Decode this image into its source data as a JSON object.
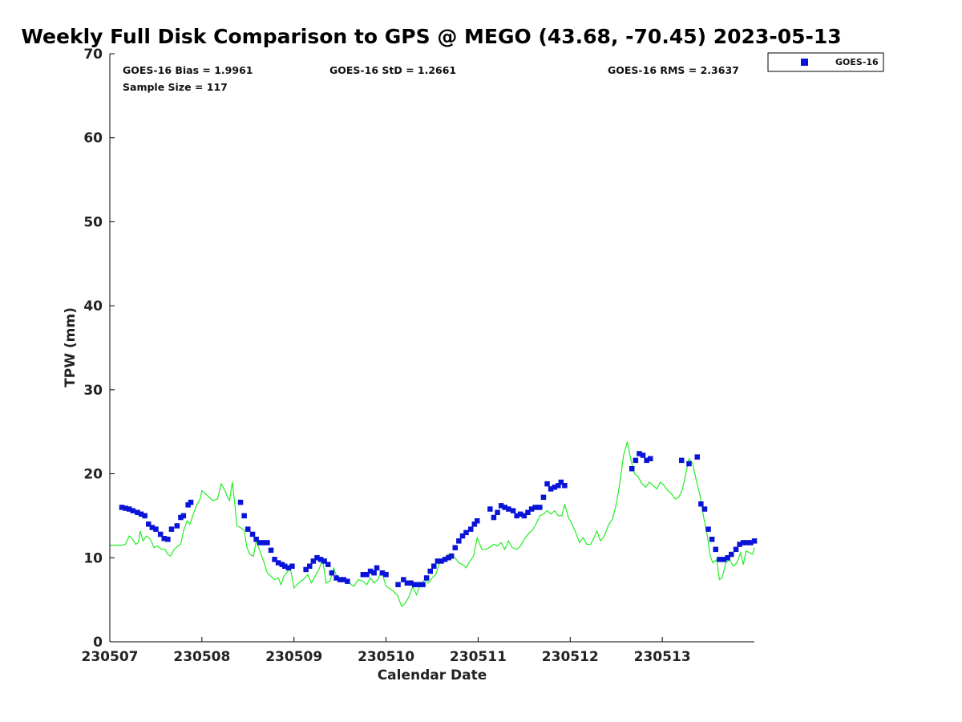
{
  "chart_data": {
    "type": "scatter",
    "title": "Weekly Full Disk Comparison to GPS @ MEGO (43.68, -70.45) 2023-05-13",
    "xlabel": "Calendar Date",
    "ylabel": "TPW (mm)",
    "xlim": [
      0,
      7
    ],
    "ylim": [
      0,
      70
    ],
    "x_ticks": [
      0,
      1,
      2,
      3,
      4,
      5,
      6
    ],
    "x_tick_labels": [
      "230507",
      "230508",
      "230509",
      "230510",
      "230511",
      "230512",
      "230513"
    ],
    "y_ticks": [
      0,
      10,
      20,
      30,
      40,
      50,
      60,
      70
    ],
    "y_tick_labels": [
      "0",
      "10",
      "20",
      "30",
      "40",
      "50",
      "60",
      "70"
    ],
    "grid": false,
    "legend_position": "top-right (outside plot)",
    "stats": {
      "bias": "GOES-16 Bias = 1.9961",
      "std": "GOES-16 StD = 1.2661",
      "rms": "GOES-16 RMS = 2.3637",
      "sample": "Sample Size = 117"
    },
    "series": [
      {
        "name": "GOES-16",
        "kind": "scatter",
        "color": "#0a14d8",
        "points": [
          [
            0.13,
            16.0
          ],
          [
            0.17,
            15.9
          ],
          [
            0.21,
            15.8
          ],
          [
            0.25,
            15.6
          ],
          [
            0.3,
            15.4
          ],
          [
            0.34,
            15.2
          ],
          [
            0.38,
            15.0
          ],
          [
            0.42,
            14.0
          ],
          [
            0.46,
            13.6
          ],
          [
            0.5,
            13.4
          ],
          [
            0.55,
            12.8
          ],
          [
            0.59,
            12.3
          ],
          [
            0.63,
            12.2
          ],
          [
            0.67,
            13.4
          ],
          [
            0.73,
            13.8
          ],
          [
            0.77,
            14.8
          ],
          [
            0.8,
            15.0
          ],
          [
            0.85,
            16.3
          ],
          [
            0.88,
            16.6
          ],
          [
            1.42,
            16.6
          ],
          [
            1.46,
            15.0
          ],
          [
            1.5,
            13.4
          ],
          [
            1.55,
            12.8
          ],
          [
            1.59,
            12.2
          ],
          [
            1.63,
            11.8
          ],
          [
            1.67,
            11.8
          ],
          [
            1.71,
            11.8
          ],
          [
            1.75,
            10.9
          ],
          [
            1.79,
            9.8
          ],
          [
            1.83,
            9.4
          ],
          [
            1.87,
            9.2
          ],
          [
            1.9,
            9.0
          ],
          [
            1.94,
            8.8
          ],
          [
            1.98,
            9.0
          ],
          [
            2.13,
            8.6
          ],
          [
            2.17,
            9.0
          ],
          [
            2.21,
            9.6
          ],
          [
            2.25,
            10.0
          ],
          [
            2.29,
            9.8
          ],
          [
            2.33,
            9.6
          ],
          [
            2.37,
            9.2
          ],
          [
            2.41,
            8.2
          ],
          [
            2.46,
            7.6
          ],
          [
            2.5,
            7.4
          ],
          [
            2.54,
            7.4
          ],
          [
            2.58,
            7.2
          ],
          [
            2.75,
            8.0
          ],
          [
            2.79,
            8.0
          ],
          [
            2.83,
            8.4
          ],
          [
            2.87,
            8.2
          ],
          [
            2.9,
            8.8
          ],
          [
            2.96,
            8.2
          ],
          [
            3.0,
            8.0
          ],
          [
            3.13,
            6.8
          ],
          [
            3.19,
            7.4
          ],
          [
            3.23,
            7.0
          ],
          [
            3.27,
            7.0
          ],
          [
            3.31,
            6.8
          ],
          [
            3.35,
            6.8
          ],
          [
            3.4,
            6.8
          ],
          [
            3.44,
            7.6
          ],
          [
            3.48,
            8.4
          ],
          [
            3.52,
            9.0
          ],
          [
            3.56,
            9.6
          ],
          [
            3.6,
            9.6
          ],
          [
            3.64,
            9.8
          ],
          [
            3.68,
            10.0
          ],
          [
            3.71,
            10.2
          ],
          [
            3.75,
            11.2
          ],
          [
            3.79,
            12.0
          ],
          [
            3.83,
            12.6
          ],
          [
            3.87,
            13.0
          ],
          [
            3.92,
            13.4
          ],
          [
            3.96,
            14.0
          ],
          [
            3.99,
            14.4
          ],
          [
            4.13,
            15.8
          ],
          [
            4.17,
            14.8
          ],
          [
            4.21,
            15.4
          ],
          [
            4.25,
            16.2
          ],
          [
            4.29,
            16.0
          ],
          [
            4.33,
            15.8
          ],
          [
            4.38,
            15.6
          ],
          [
            4.42,
            15.0
          ],
          [
            4.46,
            15.2
          ],
          [
            4.5,
            15.0
          ],
          [
            4.54,
            15.4
          ],
          [
            4.58,
            15.8
          ],
          [
            4.62,
            16.0
          ],
          [
            4.67,
            16.0
          ],
          [
            4.71,
            17.2
          ],
          [
            4.75,
            18.8
          ],
          [
            4.79,
            18.2
          ],
          [
            4.83,
            18.4
          ],
          [
            4.87,
            18.6
          ],
          [
            4.9,
            19.0
          ],
          [
            4.94,
            18.6
          ],
          [
            5.67,
            20.6
          ],
          [
            5.71,
            21.6
          ],
          [
            5.75,
            22.4
          ],
          [
            5.79,
            22.2
          ],
          [
            5.83,
            21.6
          ],
          [
            5.87,
            21.8
          ],
          [
            6.21,
            21.6
          ],
          [
            6.29,
            21.2
          ],
          [
            6.38,
            22.0
          ],
          [
            6.42,
            16.4
          ],
          [
            6.46,
            15.8
          ],
          [
            6.5,
            13.4
          ],
          [
            6.54,
            12.2
          ],
          [
            6.58,
            11.0
          ],
          [
            6.62,
            9.8
          ],
          [
            6.67,
            9.8
          ],
          [
            6.71,
            10.0
          ],
          [
            6.75,
            10.4
          ],
          [
            6.8,
            11.0
          ],
          [
            6.84,
            11.6
          ],
          [
            6.88,
            11.8
          ],
          [
            6.92,
            11.8
          ],
          [
            6.96,
            11.8
          ],
          [
            7.0,
            12.0
          ]
        ]
      },
      {
        "name": "GPS",
        "kind": "line",
        "color": "#22ee22",
        "points": [
          [
            0.0,
            11.5
          ],
          [
            0.13,
            11.5
          ],
          [
            0.17,
            11.6
          ],
          [
            0.21,
            12.6
          ],
          [
            0.25,
            12.2
          ],
          [
            0.28,
            11.6
          ],
          [
            0.31,
            11.8
          ],
          [
            0.33,
            13.2
          ],
          [
            0.36,
            12.0
          ],
          [
            0.4,
            12.6
          ],
          [
            0.44,
            12.2
          ],
          [
            0.48,
            11.2
          ],
          [
            0.52,
            11.4
          ],
          [
            0.56,
            11.0
          ],
          [
            0.6,
            11.0
          ],
          [
            0.63,
            10.4
          ],
          [
            0.66,
            10.2
          ],
          [
            0.7,
            11.0
          ],
          [
            0.74,
            11.4
          ],
          [
            0.77,
            11.6
          ],
          [
            0.8,
            13.2
          ],
          [
            0.84,
            14.4
          ],
          [
            0.87,
            14.0
          ],
          [
            0.9,
            15.0
          ],
          [
            0.94,
            16.2
          ],
          [
            0.98,
            17.0
          ],
          [
            1.0,
            18.0
          ],
          [
            1.04,
            17.6
          ],
          [
            1.08,
            17.2
          ],
          [
            1.12,
            16.8
          ],
          [
            1.17,
            17.0
          ],
          [
            1.21,
            18.8
          ],
          [
            1.25,
            18.0
          ],
          [
            1.27,
            17.4
          ],
          [
            1.3,
            16.8
          ],
          [
            1.33,
            19.0
          ],
          [
            1.36,
            16.2
          ],
          [
            1.38,
            13.8
          ],
          [
            1.42,
            13.6
          ],
          [
            1.46,
            13.2
          ],
          [
            1.49,
            11.2
          ],
          [
            1.52,
            10.4
          ],
          [
            1.56,
            10.2
          ],
          [
            1.59,
            12.0
          ],
          [
            1.63,
            10.8
          ],
          [
            1.67,
            9.6
          ],
          [
            1.71,
            8.2
          ],
          [
            1.75,
            7.8
          ],
          [
            1.79,
            7.4
          ],
          [
            1.83,
            7.6
          ],
          [
            1.86,
            6.8
          ],
          [
            1.89,
            7.8
          ],
          [
            1.92,
            8.2
          ],
          [
            1.96,
            8.8
          ],
          [
            2.0,
            6.4
          ],
          [
            2.05,
            7.0
          ],
          [
            2.1,
            7.4
          ],
          [
            2.15,
            8.0
          ],
          [
            2.19,
            7.0
          ],
          [
            2.23,
            7.8
          ],
          [
            2.27,
            8.6
          ],
          [
            2.31,
            9.8
          ],
          [
            2.35,
            7.0
          ],
          [
            2.39,
            7.2
          ],
          [
            2.43,
            8.8
          ],
          [
            2.47,
            7.6
          ],
          [
            2.51,
            7.2
          ],
          [
            2.55,
            7.6
          ],
          [
            2.6,
            7.0
          ],
          [
            2.65,
            6.6
          ],
          [
            2.7,
            7.4
          ],
          [
            2.75,
            7.2
          ],
          [
            2.79,
            6.8
          ],
          [
            2.83,
            7.6
          ],
          [
            2.87,
            7.0
          ],
          [
            2.91,
            7.4
          ],
          [
            2.95,
            8.4
          ],
          [
            3.0,
            6.6
          ],
          [
            3.06,
            6.2
          ],
          [
            3.12,
            5.6
          ],
          [
            3.17,
            4.2
          ],
          [
            3.21,
            4.6
          ],
          [
            3.25,
            5.4
          ],
          [
            3.29,
            6.6
          ],
          [
            3.33,
            5.6
          ],
          [
            3.37,
            6.8
          ],
          [
            3.42,
            7.4
          ],
          [
            3.46,
            7.0
          ],
          [
            3.5,
            7.6
          ],
          [
            3.54,
            8.0
          ],
          [
            3.58,
            9.4
          ],
          [
            3.62,
            9.8
          ],
          [
            3.67,
            10.4
          ],
          [
            3.71,
            10.2
          ],
          [
            3.75,
            10.0
          ],
          [
            3.79,
            9.4
          ],
          [
            3.83,
            9.2
          ],
          [
            3.87,
            8.8
          ],
          [
            3.91,
            9.6
          ],
          [
            3.95,
            10.2
          ],
          [
            3.99,
            12.4
          ],
          [
            4.04,
            11.0
          ],
          [
            4.08,
            11.0
          ],
          [
            4.12,
            11.2
          ],
          [
            4.17,
            11.6
          ],
          [
            4.21,
            11.4
          ],
          [
            4.25,
            11.8
          ],
          [
            4.29,
            11.0
          ],
          [
            4.33,
            12.0
          ],
          [
            4.37,
            11.2
          ],
          [
            4.42,
            11.0
          ],
          [
            4.46,
            11.4
          ],
          [
            4.5,
            12.2
          ],
          [
            4.54,
            12.8
          ],
          [
            4.58,
            13.2
          ],
          [
            4.62,
            13.8
          ],
          [
            4.67,
            15.0
          ],
          [
            4.71,
            15.2
          ],
          [
            4.75,
            15.6
          ],
          [
            4.79,
            15.2
          ],
          [
            4.83,
            15.6
          ],
          [
            4.87,
            15.0
          ],
          [
            4.91,
            15.0
          ],
          [
            4.94,
            16.4
          ],
          [
            4.98,
            14.8
          ],
          [
            5.02,
            14.0
          ],
          [
            5.06,
            13.0
          ],
          [
            5.1,
            11.8
          ],
          [
            5.14,
            12.4
          ],
          [
            5.18,
            11.6
          ],
          [
            5.22,
            11.6
          ],
          [
            5.26,
            12.4
          ],
          [
            5.29,
            13.2
          ],
          [
            5.33,
            12.0
          ],
          [
            5.37,
            12.6
          ],
          [
            5.42,
            14.0
          ],
          [
            5.46,
            14.6
          ],
          [
            5.5,
            16.4
          ],
          [
            5.54,
            19.0
          ],
          [
            5.58,
            22.2
          ],
          [
            5.62,
            23.8
          ],
          [
            5.66,
            21.6
          ],
          [
            5.7,
            20.0
          ],
          [
            5.74,
            19.6
          ],
          [
            5.78,
            18.8
          ],
          [
            5.82,
            18.4
          ],
          [
            5.86,
            19.0
          ],
          [
            5.9,
            18.6
          ],
          [
            5.94,
            18.2
          ],
          [
            5.98,
            19.0
          ],
          [
            6.02,
            18.6
          ],
          [
            6.06,
            18.0
          ],
          [
            6.1,
            17.6
          ],
          [
            6.14,
            17.0
          ],
          [
            6.18,
            17.2
          ],
          [
            6.22,
            18.2
          ],
          [
            6.26,
            20.2
          ],
          [
            6.29,
            21.8
          ],
          [
            6.33,
            21.2
          ],
          [
            6.37,
            19.2
          ],
          [
            6.41,
            17.4
          ],
          [
            6.45,
            14.8
          ],
          [
            6.49,
            12.6
          ],
          [
            6.52,
            10.2
          ],
          [
            6.55,
            9.4
          ],
          [
            6.59,
            9.8
          ],
          [
            6.62,
            7.4
          ],
          [
            6.65,
            7.6
          ],
          [
            6.69,
            9.4
          ],
          [
            6.73,
            9.8
          ],
          [
            6.77,
            9.0
          ],
          [
            6.81,
            9.4
          ],
          [
            6.85,
            10.6
          ],
          [
            6.88,
            9.2
          ],
          [
            6.91,
            10.8
          ],
          [
            6.95,
            10.6
          ],
          [
            6.98,
            10.4
          ],
          [
            7.0,
            11.2
          ]
        ]
      }
    ]
  }
}
